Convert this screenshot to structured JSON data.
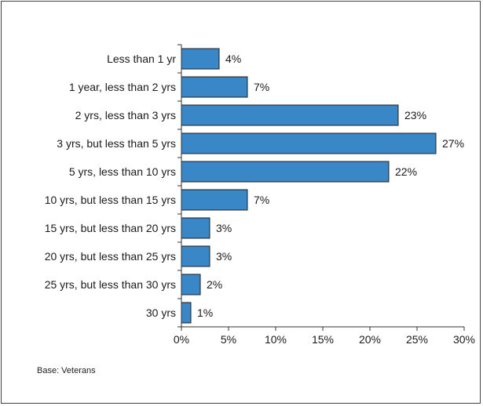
{
  "chart_data": {
    "type": "bar",
    "orientation": "horizontal",
    "categories": [
      "Less than 1 yr",
      "1 year, less than 2 yrs",
      "2 yrs, less than 3 yrs",
      "3 yrs, but less than 5 yrs",
      "5 yrs, less than 10 yrs",
      "10 yrs, but less than 15 yrs",
      "15 yrs, but less than 20 yrs",
      "20 yrs, but less than 25 yrs",
      "25 yrs, but less than 30 yrs",
      "30 yrs"
    ],
    "values": [
      4,
      7,
      23,
      27,
      22,
      7,
      3,
      3,
      2,
      1
    ],
    "value_labels": [
      "4%",
      "7%",
      "23%",
      "27%",
      "22%",
      "7%",
      "3%",
      "3%",
      "2%",
      "1%"
    ],
    "xlim": [
      0,
      30
    ],
    "xticks": [
      0,
      5,
      10,
      15,
      20,
      25,
      30
    ],
    "xtick_labels": [
      "0%",
      "5%",
      "10%",
      "15%",
      "20%",
      "25%",
      "30%"
    ],
    "grid": false,
    "bar_color": "#3a87c8",
    "bar_edge_color": "#1f1f1f"
  },
  "note": "Base: Veterans"
}
